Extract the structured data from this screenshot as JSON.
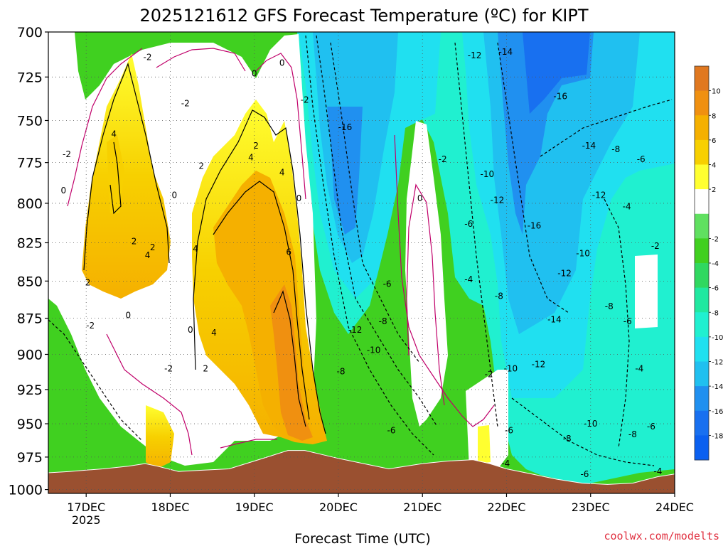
{
  "chart_data": {
    "type": "heatmap",
    "title": "2025121612 GFS Forecast Temperature (ºC) for KIPT",
    "xlabel": "Forecast Time (UTC)",
    "ylabel": "",
    "x_ticks": [
      "17DEC",
      "18DEC",
      "19DEC",
      "20DEC",
      "21DEC",
      "22DEC",
      "23DEC",
      "24DEC"
    ],
    "x_year_label": "2025",
    "xlim_days": [
      16.55,
      24.0
    ],
    "y_ticks": [
      "700",
      "725",
      "750",
      "775",
      "800",
      "825",
      "850",
      "875",
      "900",
      "925",
      "950",
      "975",
      "1000"
    ],
    "ylim_hpa": [
      700,
      1003
    ],
    "colorbar": {
      "levels": [
        12,
        10,
        8,
        6,
        4,
        2,
        0,
        -2,
        -4,
        -6,
        -8,
        -10,
        -12,
        -14,
        -16,
        -18,
        -20
      ],
      "tick_labels": [
        "10",
        "8",
        "6",
        "4",
        "2",
        "-2",
        "-4",
        "-6",
        "-8",
        "-10",
        "-12",
        "-14",
        "-16",
        "-18"
      ],
      "colors": [
        "#e07820",
        "#f09010",
        "#f5b000",
        "#f7d000",
        "#ffff30",
        "#ffffff",
        "#60e060",
        "#40d020",
        "#30d860",
        "#20e8a0",
        "#20f0d0",
        "#20e0f0",
        "#20c0f0",
        "#2090f0",
        "#1870f0",
        "#0a60f0"
      ]
    },
    "surface_pressure": [
      [
        16.55,
        987
      ],
      [
        16.8,
        986
      ],
      [
        17.0,
        985
      ],
      [
        17.2,
        984
      ],
      [
        17.5,
        982
      ],
      [
        17.7,
        980
      ],
      [
        17.85,
        982
      ],
      [
        18.1,
        986
      ],
      [
        18.4,
        985
      ],
      [
        18.7,
        984
      ],
      [
        19.0,
        978
      ],
      [
        19.2,
        974
      ],
      [
        19.4,
        970
      ],
      [
        19.6,
        970
      ],
      [
        19.8,
        973
      ],
      [
        20.0,
        976
      ],
      [
        20.3,
        980
      ],
      [
        20.6,
        984
      ],
      [
        21.0,
        980
      ],
      [
        21.3,
        978
      ],
      [
        21.6,
        977
      ],
      [
        21.8,
        980
      ],
      [
        22.0,
        984
      ],
      [
        22.3,
        988
      ],
      [
        22.6,
        992
      ],
      [
        22.9,
        995
      ],
      [
        23.2,
        996
      ],
      [
        23.5,
        995
      ],
      [
        23.8,
        990
      ],
      [
        24.0,
        988
      ]
    ],
    "contour_labels": [
      {
        "label": "-2",
        "day": 16.77,
        "hpa": 770
      },
      {
        "label": "0",
        "day": 16.73,
        "hpa": 792
      },
      {
        "label": "4",
        "day": 17.33,
        "hpa": 758
      },
      {
        "label": "2",
        "day": 17.02,
        "hpa": 851
      },
      {
        "label": "-2",
        "day": 17.05,
        "hpa": 880
      },
      {
        "label": "0",
        "day": 17.5,
        "hpa": 873
      },
      {
        "label": "2",
        "day": 17.57,
        "hpa": 824
      },
      {
        "label": "4",
        "day": 17.73,
        "hpa": 833
      },
      {
        "label": "2",
        "day": 17.79,
        "hpa": 828
      },
      {
        "label": "-2",
        "day": 17.73,
        "hpa": 714
      },
      {
        "label": "0",
        "day": 18.05,
        "hpa": 795
      },
      {
        "label": "-2",
        "day": 18.18,
        "hpa": 740
      },
      {
        "label": "2",
        "day": 18.37,
        "hpa": 777
      },
      {
        "label": "4",
        "day": 18.3,
        "hpa": 829
      },
      {
        "label": "0",
        "day": 18.24,
        "hpa": 883
      },
      {
        "label": "4",
        "day": 18.52,
        "hpa": 885
      },
      {
        "label": "2",
        "day": 18.42,
        "hpa": 910
      },
      {
        "label": "-2",
        "day": 17.98,
        "hpa": 910
      },
      {
        "label": "0",
        "day": 19.0,
        "hpa": 723
      },
      {
        "label": "0",
        "day": 19.33,
        "hpa": 717
      },
      {
        "label": "2",
        "day": 19.02,
        "hpa": 765
      },
      {
        "label": "4",
        "day": 18.96,
        "hpa": 772
      },
      {
        "label": "4",
        "day": 19.33,
        "hpa": 781
      },
      {
        "label": "0",
        "day": 19.53,
        "hpa": 797
      },
      {
        "label": "6",
        "day": 19.41,
        "hpa": 831
      },
      {
        "label": "-2",
        "day": 19.6,
        "hpa": 738
      },
      {
        "label": "-16",
        "day": 20.08,
        "hpa": 754
      },
      {
        "label": "-12",
        "day": 20.2,
        "hpa": 883
      },
      {
        "label": "-10",
        "day": 20.42,
        "hpa": 897
      },
      {
        "label": "-8",
        "day": 20.03,
        "hpa": 912
      },
      {
        "label": "-8",
        "day": 20.53,
        "hpa": 877
      },
      {
        "label": "-6",
        "day": 20.58,
        "hpa": 852
      },
      {
        "label": "-6",
        "day": 20.63,
        "hpa": 955
      },
      {
        "label": "0",
        "day": 20.97,
        "hpa": 797
      },
      {
        "label": "-2",
        "day": 21.24,
        "hpa": 773
      },
      {
        "label": "-12",
        "day": 21.62,
        "hpa": 713
      },
      {
        "label": "-14",
        "day": 21.99,
        "hpa": 711
      },
      {
        "label": "-10",
        "day": 21.77,
        "hpa": 782
      },
      {
        "label": "-12",
        "day": 21.89,
        "hpa": 798
      },
      {
        "label": "-6",
        "day": 21.55,
        "hpa": 813
      },
      {
        "label": "-4",
        "day": 21.55,
        "hpa": 849
      },
      {
        "label": "-8",
        "day": 21.91,
        "hpa": 860
      },
      {
        "label": "-2",
        "day": 21.79,
        "hpa": 914
      },
      {
        "label": "-10",
        "day": 22.05,
        "hpa": 910
      },
      {
        "label": "-12",
        "day": 22.38,
        "hpa": 907
      },
      {
        "label": "-6",
        "day": 22.03,
        "hpa": 955
      },
      {
        "label": "-4",
        "day": 21.99,
        "hpa": 980
      },
      {
        "label": "-16",
        "day": 22.64,
        "hpa": 736
      },
      {
        "label": "-16",
        "day": 22.33,
        "hpa": 814
      },
      {
        "label": "-14",
        "day": 22.98,
        "hpa": 765
      },
      {
        "label": "-12",
        "day": 23.1,
        "hpa": 795
      },
      {
        "label": "-12",
        "day": 22.69,
        "hpa": 845
      },
      {
        "label": "-10",
        "day": 22.91,
        "hpa": 832
      },
      {
        "label": "-14",
        "day": 22.57,
        "hpa": 876
      },
      {
        "label": "-8",
        "day": 23.22,
        "hpa": 867
      },
      {
        "label": "-10",
        "day": 23.0,
        "hpa": 950
      },
      {
        "label": "-8",
        "day": 22.72,
        "hpa": 961
      },
      {
        "label": "-6",
        "day": 22.93,
        "hpa": 988
      },
      {
        "label": "-8",
        "day": 23.3,
        "hpa": 767
      },
      {
        "label": "-6",
        "day": 23.6,
        "hpa": 773
      },
      {
        "label": "-4",
        "day": 23.43,
        "hpa": 802
      },
      {
        "label": "-2",
        "day": 23.77,
        "hpa": 827
      },
      {
        "label": "-6",
        "day": 23.44,
        "hpa": 877
      },
      {
        "label": "-4",
        "day": 23.58,
        "hpa": 910
      },
      {
        "label": "-8",
        "day": 23.5,
        "hpa": 958
      },
      {
        "label": "-6",
        "day": 23.72,
        "hpa": 952
      },
      {
        "label": "-4",
        "day": 23.8,
        "hpa": 986
      }
    ]
  },
  "footer": {
    "xlabel": "Forecast Time (UTC)",
    "credit": "coolwx.com/modelts"
  }
}
